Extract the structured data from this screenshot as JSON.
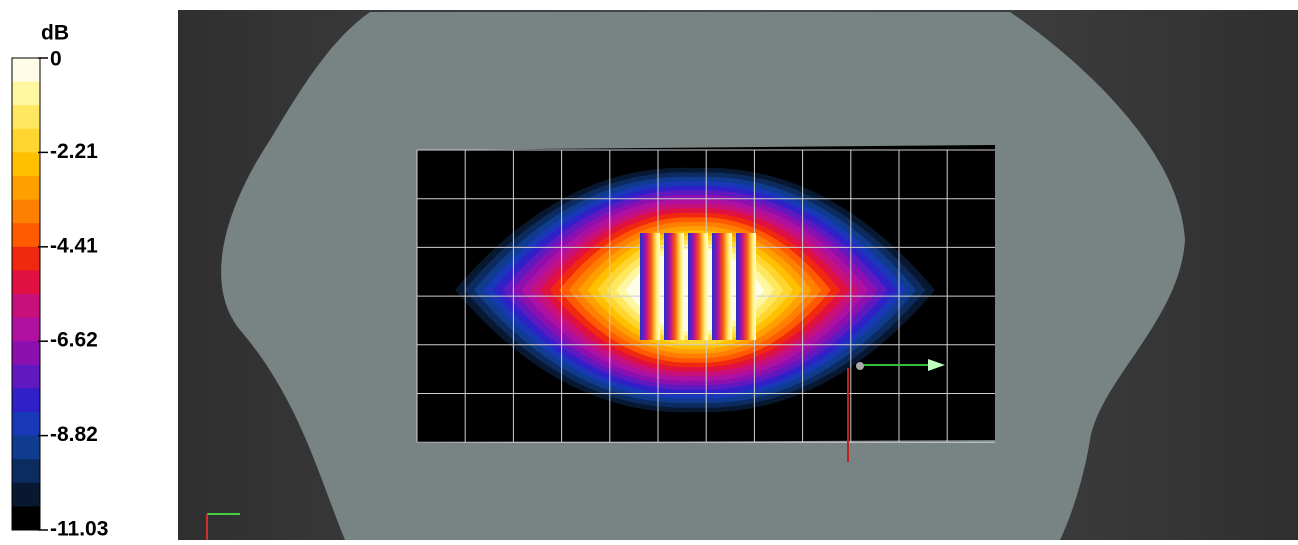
{
  "legend": {
    "title": "dB",
    "ticks": [
      "0",
      "-2.21",
      "-4.41",
      "-6.62",
      "-8.82",
      "-11.03"
    ],
    "colors": [
      "#fffde8",
      "#fff6a0",
      "#ffe860",
      "#ffd630",
      "#ffc000",
      "#ffa000",
      "#ff8000",
      "#ff5a00",
      "#f02810",
      "#e01040",
      "#c8107a",
      "#b010a0",
      "#8c10b0",
      "#6018c0",
      "#3020c8",
      "#1838b8",
      "#103c90",
      "#0c2c60",
      "#081830",
      "#000000"
    ]
  }
}
